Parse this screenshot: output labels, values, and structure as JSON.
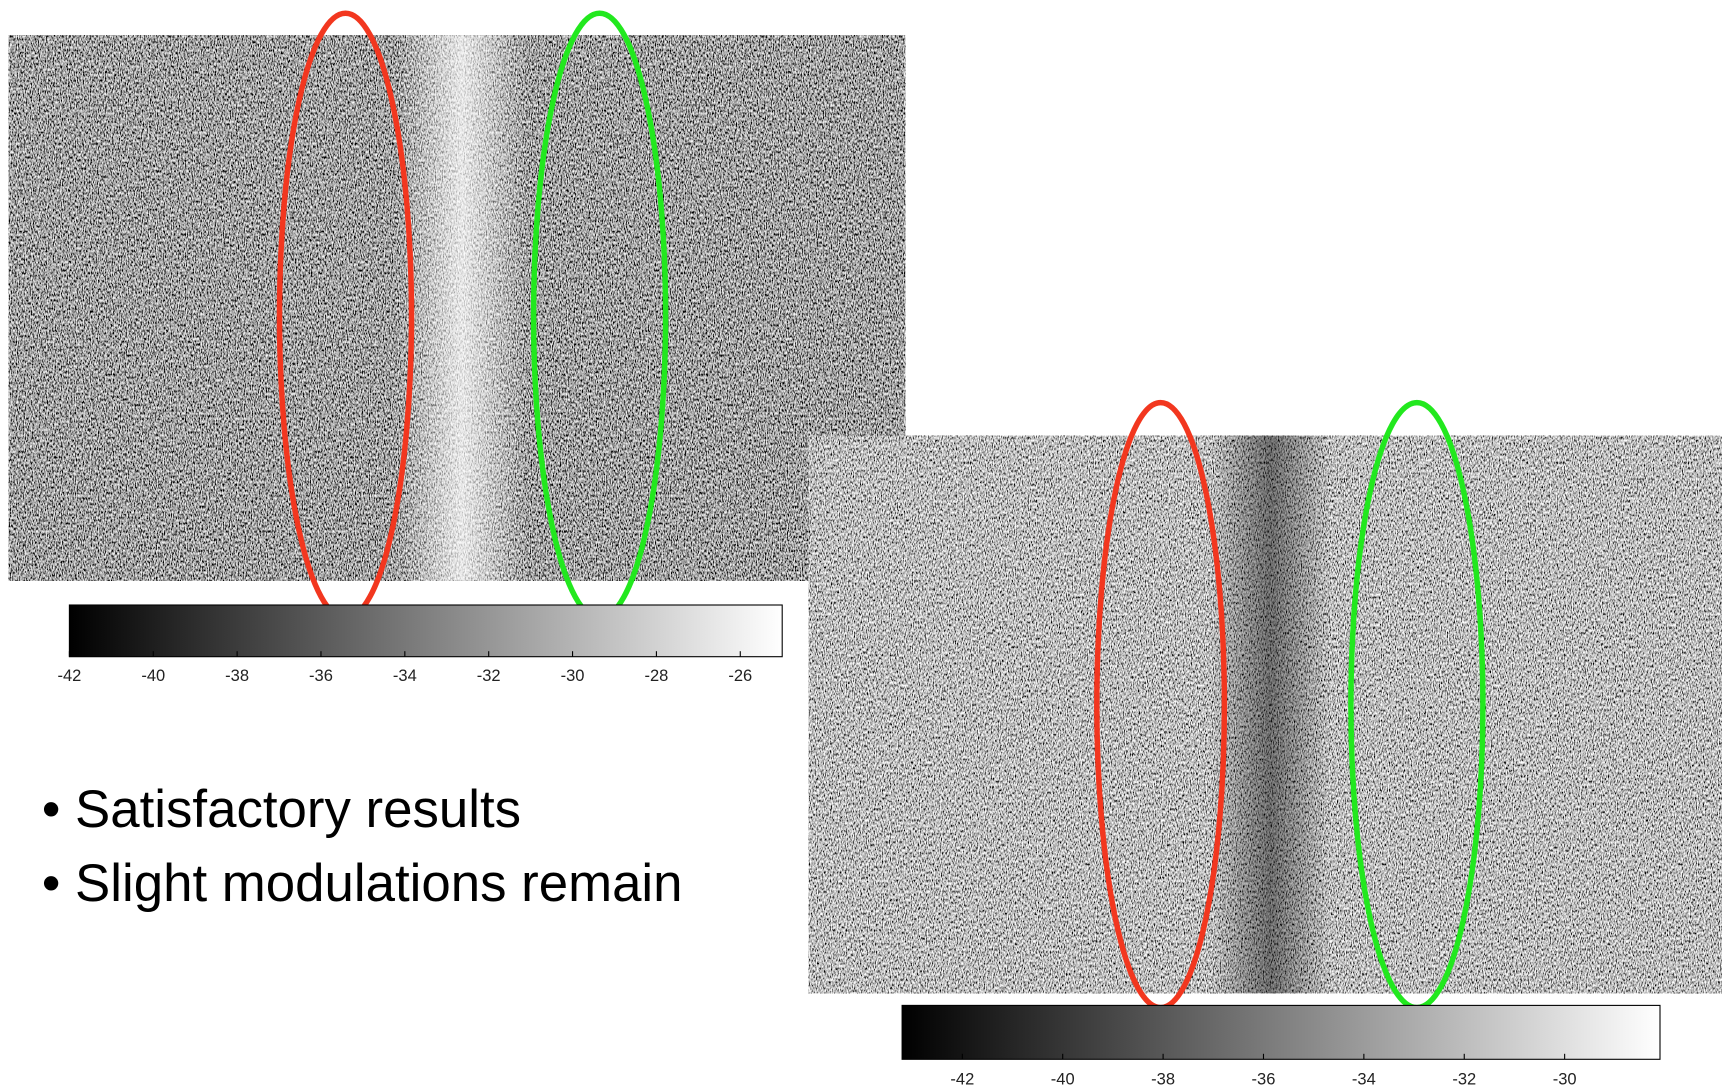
{
  "slide": {
    "bullets": [
      "Satisfactory results",
      "Slight modulations remain"
    ],
    "colorbars": [
      {
        "range": [
          -42,
          -25
        ],
        "ticks": [
          -42,
          -40,
          -38,
          -36,
          -34,
          -32,
          -30,
          -28,
          -26
        ]
      },
      {
        "range": [
          -43.2,
          -28.1
        ],
        "ticks": [
          -42,
          -40,
          -38,
          -36,
          -34,
          -32,
          -30
        ]
      }
    ]
  }
}
